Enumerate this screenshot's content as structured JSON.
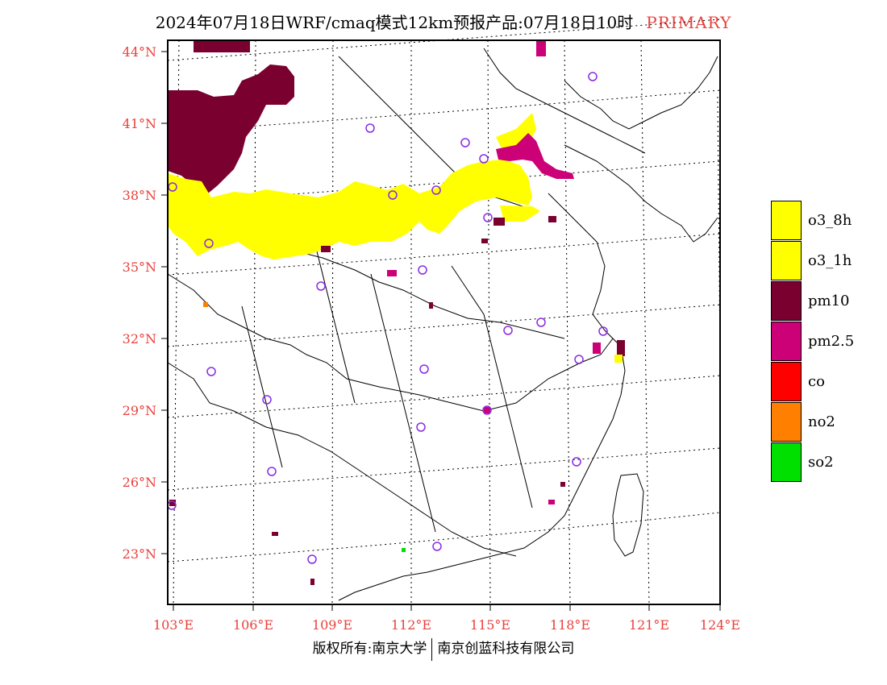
{
  "header": {
    "title": "2024年07月18日WRF/cmaq模式12km预报产品:07月18日10时",
    "tag": "PRIMARY"
  },
  "map": {
    "lat_labels": [
      "44°N",
      "41°N",
      "38°N",
      "35°N",
      "32°N",
      "29°N",
      "26°N",
      "23°N"
    ],
    "lon_labels": [
      "103°E",
      "106°E",
      "109°E",
      "112°E",
      "115°E",
      "118°E",
      "121°E",
      "124°E"
    ]
  },
  "legend": {
    "items": [
      {
        "label": "o3_8h",
        "color": "#ffff00"
      },
      {
        "label": "o3_1h",
        "color": "#ffff00"
      },
      {
        "label": "pm10",
        "color": "#7a0030"
      },
      {
        "label": "pm2.5",
        "color": "#cc0077"
      },
      {
        "label": "co",
        "color": "#ff0000"
      },
      {
        "label": "no2",
        "color": "#ff7f00"
      },
      {
        "label": "so2",
        "color": "#00e000"
      }
    ]
  },
  "footer": {
    "left": "版权所有:南京大学",
    "right": "南京创蓝科技有限公司"
  }
}
